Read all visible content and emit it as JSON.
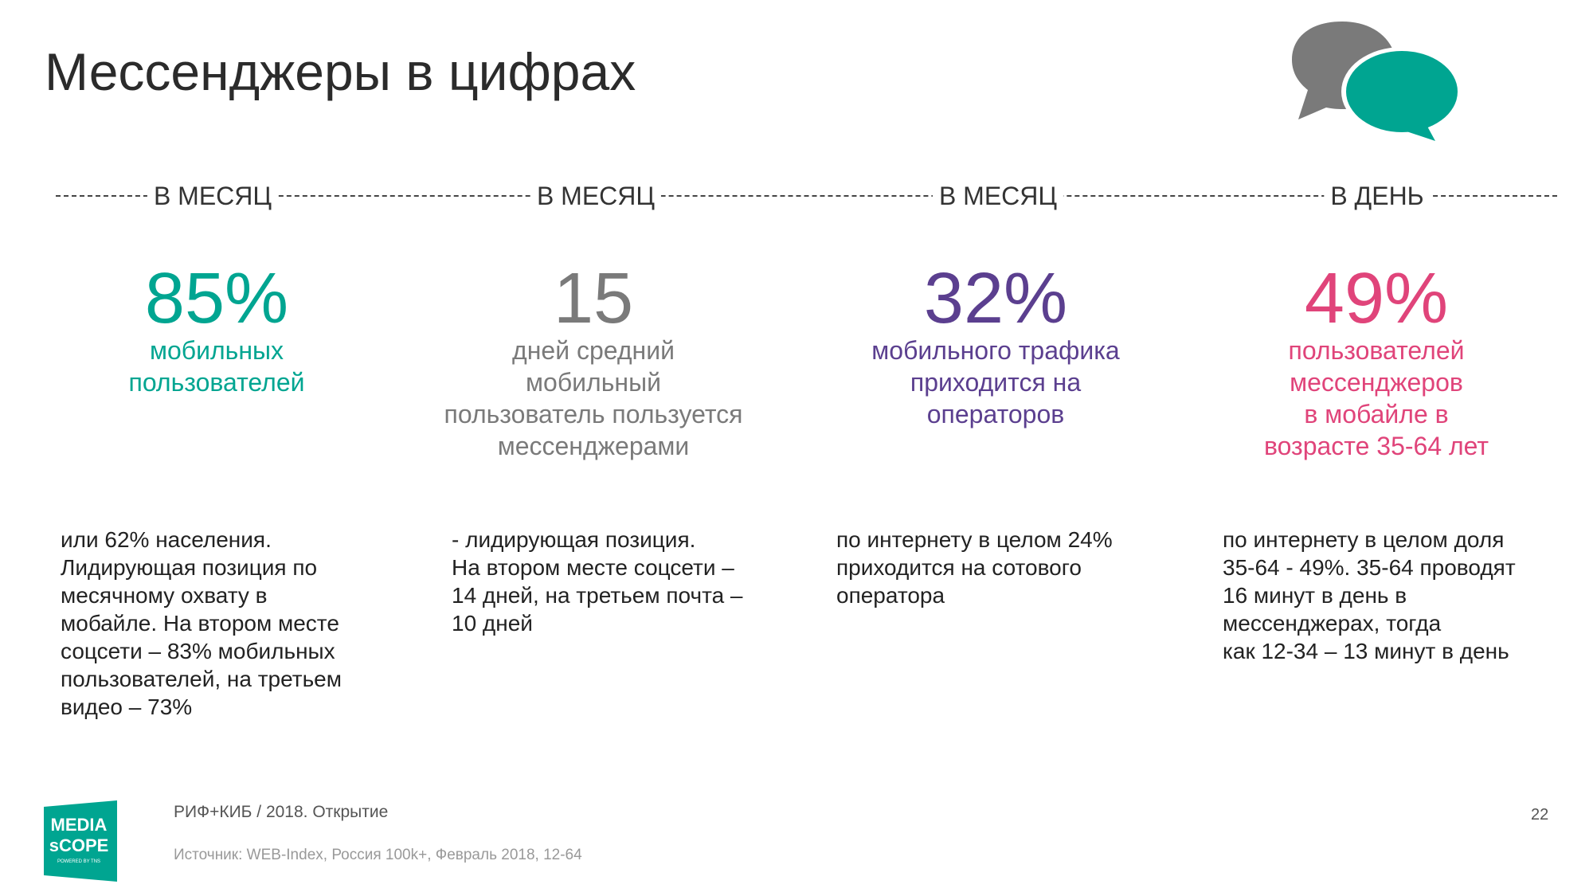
{
  "title": "Мессенджеры в цифрах",
  "colors": {
    "teal": "#00a591",
    "gray": "#7a7a7a",
    "purple": "#5b3f8f",
    "pink": "#e0447a"
  },
  "stats": [
    {
      "period": "В МЕСЯЦ",
      "value": "85%",
      "label_lines": [
        "мобильных",
        "пользователей"
      ],
      "description": [
        "или 62% населения.",
        "Лидирующая позиция по",
        "месячному охвату в",
        "мобайле. На втором месте",
        "соцсети – 83% мобильных",
        "пользователей, на третьем",
        "видео – 73%"
      ]
    },
    {
      "period": "В МЕСЯЦ",
      "value": "15",
      "label_lines": [
        "дней средний",
        "мобильный",
        "пользователь пользуется",
        "мессенджерами"
      ],
      "description": [
        "- лидирующая позиция.",
        "На втором месте соцсети –",
        "14 дней, на третьем почта –",
        "10 дней"
      ]
    },
    {
      "period": "В МЕСЯЦ",
      "value": "32%",
      "label_lines": [
        "мобильного трафика",
        "приходится на",
        "операторов"
      ],
      "description": [
        "по интернету в целом 24%",
        "приходится на сотового",
        "оператора"
      ]
    },
    {
      "period": "В ДЕНЬ",
      "value": "49%",
      "label_lines": [
        "пользователей",
        "мессенджеров",
        "в мобайле в",
        "возрасте 35-64 лет"
      ],
      "description": [
        "по интернету в целом доля",
        "35-64 - 49%. 35-64 проводят",
        "16 минут в день в",
        "мессенджерах, тогда",
        "как 12-34 – 13 минут в день"
      ]
    }
  ],
  "footer": {
    "event": "РИФ+КИБ / 2018. Открытие",
    "source": "Источник: WEB-Index, Россия 100k+, Февраль 2018, 12-64",
    "page_number": "22",
    "logo_text": "MEDIA SCOPE POWERED BY TNS"
  }
}
